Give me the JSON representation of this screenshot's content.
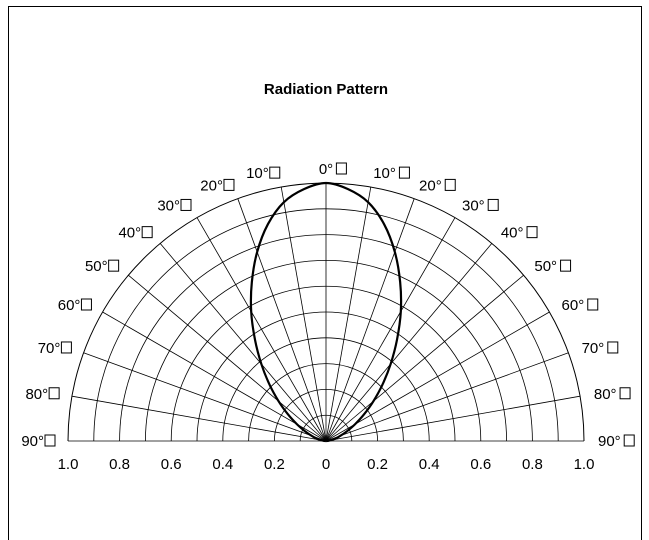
{
  "chart_data": {
    "type": "polar",
    "title": "Radiation Pattern",
    "angle_tick_labels_left": [
      "90°",
      "80°",
      "70°",
      "60°",
      "50°",
      "40°",
      "30°",
      "20°",
      "10°"
    ],
    "angle_tick_labels_center": "0°",
    "angle_tick_labels_right": [
      "10°",
      "20°",
      "30°",
      "40°",
      "50°",
      "60°",
      "70°",
      "80°",
      "90°"
    ],
    "radial_tick_labels": [
      "1.0",
      "0.8",
      "0.6",
      "0.4",
      "0.2",
      "0",
      "0.2",
      "0.4",
      "0.6",
      "0.8",
      "1.0"
    ],
    "radial_range": [
      0,
      1
    ],
    "angle_range_deg": [
      -90,
      90
    ],
    "grid": true,
    "series": [
      {
        "angles_deg": [
          0,
          5,
          10,
          15,
          20,
          25,
          30,
          35,
          40,
          45,
          50,
          55,
          60,
          65,
          70,
          75,
          80,
          85,
          90
        ],
        "values": [
          1.0,
          0.98,
          0.94,
          0.87,
          0.78,
          0.68,
          0.58,
          0.48,
          0.39,
          0.31,
          0.24,
          0.18,
          0.13,
          0.09,
          0.06,
          0.04,
          0.02,
          0.01,
          0.0
        ]
      }
    ]
  }
}
